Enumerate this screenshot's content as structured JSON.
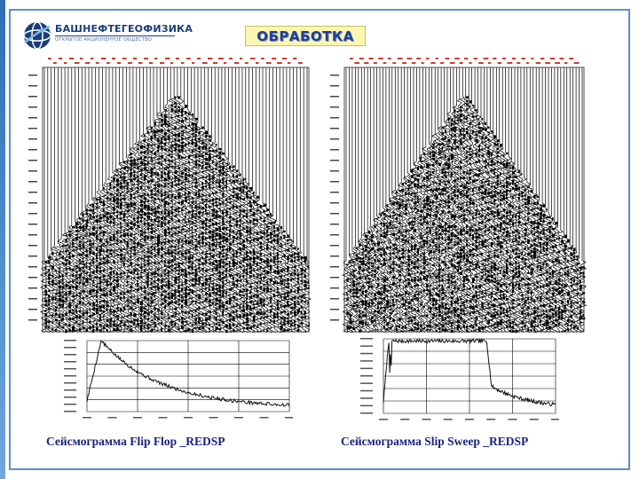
{
  "header": {
    "company_name": "БАШНЕФТЕГЕОФИЗИКА",
    "company_subtitle": "ОТКРЫТОЕ АКЦИОНЕРНОЕ ОБЩЕСТВО",
    "title": "ОБРАБОТКА"
  },
  "panels": [
    {
      "caption": "Сейсмограмма Flip Flop _REDSP",
      "seismogram": {
        "trace_count": 78,
        "noise_style": "uniform"
      },
      "spectrum": {
        "shape": "decay"
      }
    },
    {
      "caption": "Сейсмограмма Slip Sweep _REDSP",
      "seismogram": {
        "trace_count": 78,
        "noise_style": "blotchy"
      },
      "spectrum": {
        "shape": "plateau"
      }
    }
  ],
  "colors": {
    "title_text": "#1d3f9c",
    "title_bg": "#fdf6b0",
    "caption_text": "#1a237e",
    "header_marks": "#d43a2a",
    "frame": "#5a8fc9"
  }
}
